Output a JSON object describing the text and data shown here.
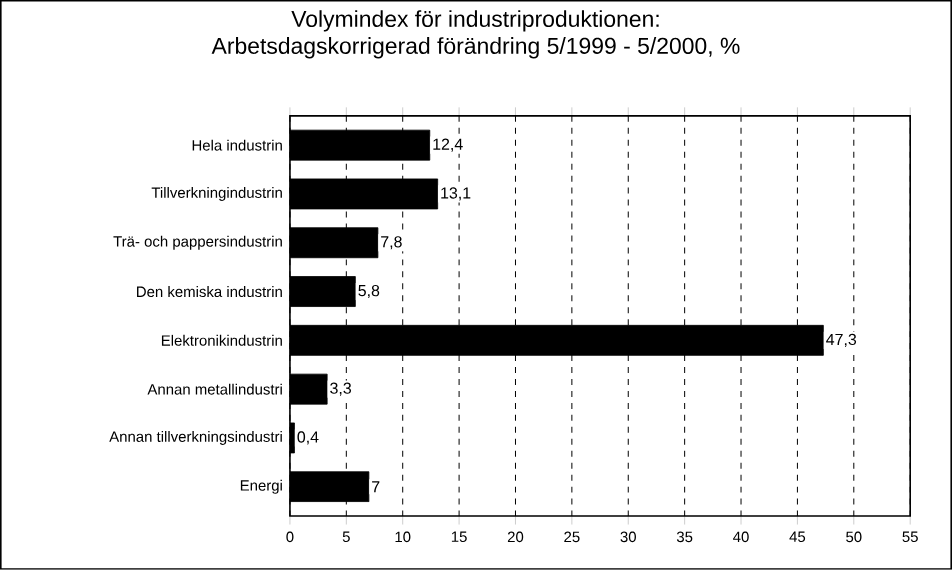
{
  "chart_data": {
    "type": "bar",
    "orientation": "horizontal",
    "title": "Volymindex för industriproduktionen:\nArbetsdagskorrigerad förändring 5/1999 - 5/2000, %",
    "categories": [
      "Hela industrin",
      "Tillverkningindustrin",
      "Trä- och pappersindustrin",
      "Den kemiska industrin",
      "Elektronikindustrin",
      "Annan metallindustri",
      "Annan tillverkningsindustri",
      "Energi"
    ],
    "values": [
      12.4,
      13.1,
      7.8,
      5.8,
      47.3,
      3.3,
      0.4,
      7
    ],
    "value_labels": [
      "12,4",
      "13,1",
      "7,8",
      "5,8",
      "47,3",
      "3,3",
      "0,4",
      "7"
    ],
    "color": "#000000",
    "xlim": [
      0,
      55
    ],
    "xticks": [
      0,
      5,
      10,
      15,
      20,
      25,
      30,
      35,
      40,
      45,
      50,
      55
    ],
    "grid": "x"
  }
}
